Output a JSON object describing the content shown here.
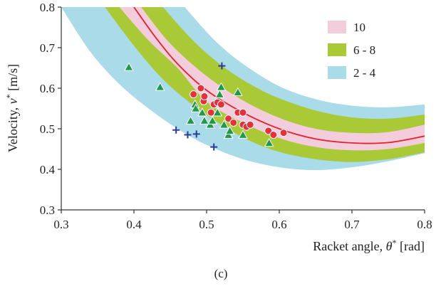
{
  "chart_data": {
    "type": "scatter",
    "caption": "(c)",
    "xlabel": {
      "text": "Racket angle, ",
      "symbol": "θ",
      "sup": "*",
      "unit": " [rad]"
    },
    "ylabel": {
      "text": "Velocity, ",
      "symbol": "v",
      "sup": "*",
      "unit": " [m/s]"
    },
    "xlim": [
      0.3,
      0.8
    ],
    "ylim": [
      0.3,
      0.8
    ],
    "xticks": [
      "0.3",
      "0.4",
      "0.5",
      "0.6",
      "0.7",
      "0.8"
    ],
    "yticks": [
      "0.3",
      "0.4",
      "0.5",
      "0.6",
      "0.7",
      "0.8"
    ],
    "colors": {
      "band_10": "#f4cddd",
      "band_6_8": "#a9c937",
      "band_2_4": "#a9dbe8",
      "center_line": "#e8202a",
      "circle": "#e8303a",
      "triangle": "#1f9a4a",
      "plus": "#2a3a9a"
    },
    "legend": {
      "position": "top-right",
      "entries": [
        {
          "label": "10",
          "color": "#f4cddd"
        },
        {
          "label": "6 - 8",
          "color": "#a9c937"
        },
        {
          "label": "2 - 4",
          "color": "#a9dbe8"
        }
      ]
    },
    "center_curve": [
      [
        0.4,
        0.8
      ],
      [
        0.43,
        0.725
      ],
      [
        0.46,
        0.66
      ],
      [
        0.5,
        0.595
      ],
      [
        0.55,
        0.54
      ],
      [
        0.6,
        0.5
      ],
      [
        0.65,
        0.475
      ],
      [
        0.7,
        0.465
      ],
      [
        0.75,
        0.466
      ],
      [
        0.8,
        0.482
      ]
    ],
    "bands": [
      {
        "name": "10",
        "upper": [
          [
            0.41,
            0.8
          ],
          [
            0.45,
            0.71
          ],
          [
            0.5,
            0.63
          ],
          [
            0.55,
            0.57
          ],
          [
            0.6,
            0.527
          ],
          [
            0.65,
            0.5
          ],
          [
            0.7,
            0.49
          ],
          [
            0.75,
            0.492
          ],
          [
            0.8,
            0.51
          ]
        ],
        "lower": [
          [
            0.38,
            0.8
          ],
          [
            0.42,
            0.718
          ],
          [
            0.46,
            0.65
          ],
          [
            0.5,
            0.567
          ],
          [
            0.55,
            0.515
          ],
          [
            0.6,
            0.477
          ],
          [
            0.65,
            0.455
          ],
          [
            0.7,
            0.447
          ],
          [
            0.75,
            0.45
          ],
          [
            0.8,
            0.465
          ]
        ]
      },
      {
        "name": "6 - 8",
        "upper": [
          [
            0.44,
            0.8
          ],
          [
            0.48,
            0.72
          ],
          [
            0.52,
            0.657
          ],
          [
            0.56,
            0.61
          ],
          [
            0.6,
            0.575
          ],
          [
            0.65,
            0.545
          ],
          [
            0.7,
            0.528
          ],
          [
            0.75,
            0.525
          ],
          [
            0.8,
            0.535
          ]
        ],
        "lower": [
          [
            0.36,
            0.8
          ],
          [
            0.4,
            0.705
          ],
          [
            0.44,
            0.622
          ],
          [
            0.48,
            0.56
          ],
          [
            0.52,
            0.51
          ],
          [
            0.56,
            0.47
          ],
          [
            0.6,
            0.443
          ],
          [
            0.65,
            0.425
          ],
          [
            0.7,
            0.418
          ],
          [
            0.75,
            0.425
          ],
          [
            0.8,
            0.442
          ]
        ]
      },
      {
        "name": "2 - 4",
        "upper": [
          [
            0.47,
            0.8
          ],
          [
            0.51,
            0.72
          ],
          [
            0.55,
            0.66
          ],
          [
            0.6,
            0.605
          ],
          [
            0.65,
            0.573
          ],
          [
            0.7,
            0.557
          ],
          [
            0.75,
            0.553
          ],
          [
            0.8,
            0.56
          ]
        ],
        "lower": [
          [
            0.3,
            0.8
          ],
          [
            0.34,
            0.69
          ],
          [
            0.38,
            0.61
          ],
          [
            0.42,
            0.55
          ],
          [
            0.46,
            0.5
          ],
          [
            0.5,
            0.46
          ],
          [
            0.55,
            0.425
          ],
          [
            0.6,
            0.405
          ],
          [
            0.65,
            0.398
          ],
          [
            0.7,
            0.405
          ],
          [
            0.75,
            0.42
          ],
          [
            0.8,
            0.44
          ]
        ]
      }
    ],
    "series": [
      {
        "marker": "circle",
        "legend": "10",
        "points": [
          [
            0.482,
            0.585
          ],
          [
            0.492,
            0.6
          ],
          [
            0.496,
            0.568
          ],
          [
            0.497,
            0.58
          ],
          [
            0.506,
            0.54
          ],
          [
            0.51,
            0.56
          ],
          [
            0.515,
            0.565
          ],
          [
            0.52,
            0.56
          ],
          [
            0.53,
            0.525
          ],
          [
            0.537,
            0.515
          ],
          [
            0.543,
            0.54
          ],
          [
            0.55,
            0.51
          ],
          [
            0.55,
            0.54
          ],
          [
            0.555,
            0.505
          ],
          [
            0.56,
            0.51
          ],
          [
            0.585,
            0.495
          ],
          [
            0.592,
            0.485
          ],
          [
            0.606,
            0.49
          ]
        ]
      },
      {
        "marker": "triangle",
        "legend": "6 - 8",
        "points": [
          [
            0.393,
            0.652
          ],
          [
            0.436,
            0.603
          ],
          [
            0.478,
            0.52
          ],
          [
            0.484,
            0.56
          ],
          [
            0.485,
            0.55
          ],
          [
            0.494,
            0.54
          ],
          [
            0.497,
            0.52
          ],
          [
            0.505,
            0.51
          ],
          [
            0.508,
            0.52
          ],
          [
            0.515,
            0.54
          ],
          [
            0.518,
            0.585
          ],
          [
            0.52,
            0.603
          ],
          [
            0.524,
            0.51
          ],
          [
            0.53,
            0.485
          ],
          [
            0.532,
            0.495
          ],
          [
            0.543,
            0.59
          ],
          [
            0.55,
            0.485
          ],
          [
            0.586,
            0.465
          ]
        ]
      },
      {
        "marker": "plus",
        "legend": "2 - 4",
        "points": [
          [
            0.458,
            0.497
          ],
          [
            0.474,
            0.485
          ],
          [
            0.486,
            0.487
          ],
          [
            0.51,
            0.455
          ],
          [
            0.521,
            0.655
          ]
        ]
      }
    ]
  }
}
